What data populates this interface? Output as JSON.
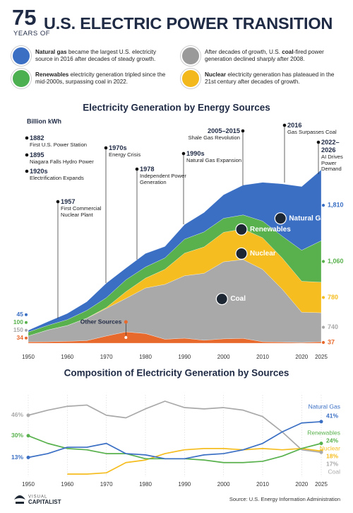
{
  "header": {
    "number": "75",
    "subtitle": "YEARS OF",
    "title": "U.S. ELECTRIC POWER TRANSITION"
  },
  "notes": [
    {
      "color": "#3a6fc4",
      "parts": [
        {
          "text": "Natural gas",
          "bold": true
        },
        {
          "text": " became the largest U.S. electricity source in 2016 after decades of steady growth.",
          "bold": false
        }
      ]
    },
    {
      "color": "#9a9a9a",
      "parts": [
        {
          "text": "After decades of growth, U.S. ",
          "bold": false
        },
        {
          "text": "coal",
          "bold": true
        },
        {
          "text": "-fired power generation declined sharply after 2008.",
          "bold": false
        }
      ]
    },
    {
      "color": "#4caf50",
      "parts": [
        {
          "text": "Renewables",
          "bold": true
        },
        {
          "text": " electricity generation tripled since the mid-2000s, surpassing coal in 2022.",
          "bold": false
        }
      ]
    },
    {
      "color": "#f2b81c",
      "parts": [
        {
          "text": "Nuclear",
          "bold": true
        },
        {
          "text": " electricity generation has plateaued in the 21st century after decades of growth.",
          "bold": false
        }
      ]
    }
  ],
  "chart_data": [
    {
      "type": "area",
      "title": "Electricity Generation by Energy Sources",
      "y_label": "Billion kWh",
      "x": [
        1950,
        1955,
        1960,
        1965,
        1970,
        1975,
        1980,
        1985,
        1990,
        1995,
        2000,
        2005,
        2010,
        2015,
        2020,
        2025
      ],
      "xlim": [
        1950,
        2025
      ],
      "xticks": [
        1950,
        1960,
        1970,
        1980,
        1990,
        2000,
        2010,
        2020,
        2025
      ],
      "series": [
        {
          "name": "Other Sources",
          "color": "#e8692c",
          "values": [
            34,
            37,
            48,
            65,
            184,
            289,
            246,
            100,
            127,
            75,
            111,
            122,
            37,
            28,
            17,
            37
          ],
          "value_labels": [
            "34",
            null,
            null,
            null,
            null,
            null,
            null,
            null,
            null,
            null,
            null,
            null,
            null,
            null,
            null,
            "37"
          ]
        },
        {
          "name": "Coal",
          "color": "#a9a9a9",
          "values": [
            150,
            301,
            403,
            571,
            704,
            853,
            1162,
            1402,
            1594,
            1709,
            1966,
            2013,
            1847,
            1352,
            774,
            740
          ],
          "value_labels": [
            "150",
            null,
            null,
            null,
            null,
            null,
            null,
            null,
            null,
            null,
            null,
            null,
            null,
            null,
            null,
            "740"
          ]
        },
        {
          "name": "Nuclear",
          "color": "#f5bd1f",
          "values": [
            0,
            0,
            1,
            4,
            22,
            173,
            251,
            384,
            577,
            673,
            754,
            782,
            807,
            797,
            790,
            780
          ],
          "value_labels": [
            null,
            null,
            null,
            null,
            null,
            null,
            null,
            null,
            null,
            null,
            null,
            null,
            null,
            null,
            null,
            "780"
          ]
        },
        {
          "name": "Renewables",
          "color": "#58b14c",
          "values": [
            100,
            116,
            149,
            197,
            251,
            303,
            285,
            292,
            357,
            384,
            357,
            358,
            427,
            557,
            792,
            1060
          ],
          "value_labels": [
            "100",
            null,
            null,
            null,
            null,
            null,
            null,
            null,
            null,
            null,
            null,
            null,
            null,
            null,
            null,
            "1,060"
          ]
        },
        {
          "name": "Natural Gas",
          "color": "#3a6fc4",
          "values": [
            45,
            95,
            158,
            222,
            373,
            300,
            346,
            292,
            373,
            496,
            601,
            761,
            988,
            1335,
            1626,
            1810
          ],
          "value_labels": [
            "45",
            null,
            null,
            null,
            null,
            null,
            null,
            null,
            null,
            null,
            null,
            null,
            null,
            null,
            null,
            "1,810"
          ]
        }
      ],
      "annotations": [
        {
          "year": "1882",
          "text": "First U.S. Power Station"
        },
        {
          "year": "1895",
          "text": "Niagara Falls Hydro Power"
        },
        {
          "year": "1920s",
          "text": "Electrification Expands"
        },
        {
          "year": "1957",
          "text": "First Commercial Nuclear Plant"
        },
        {
          "year": "1970s",
          "text": "Energy Crisis"
        },
        {
          "year": "1978",
          "text": "Independent Power Generation"
        },
        {
          "year": "1990s",
          "text": "Natural Gas Expansion"
        },
        {
          "year": "2005–2015",
          "text": "Shale Gas Revolution"
        },
        {
          "year": "2016",
          "text": "Gas Surpasses Coal"
        },
        {
          "year": "2022–2026",
          "text": "AI Drives Power Demand"
        }
      ]
    },
    {
      "type": "line",
      "title": "Composition of Electricity Generation by Sources",
      "grid": true,
      "x": [
        1950,
        1955,
        1960,
        1965,
        1970,
        1975,
        1980,
        1985,
        1990,
        1995,
        2000,
        2005,
        2010,
        2015,
        2020,
        2025
      ],
      "xlim": [
        1950,
        2025
      ],
      "xticks": [
        1950,
        1960,
        1970,
        1980,
        1990,
        2000,
        2010,
        2020,
        2025
      ],
      "series": [
        {
          "name": "Natural Gas",
          "color": "#3a6fc4",
          "values": [
            13,
            16,
            21,
            21,
            24,
            16,
            15,
            12,
            12,
            15,
            16,
            19,
            24,
            33,
            40,
            41
          ],
          "value_labels": [
            "13%",
            null,
            null,
            null,
            null,
            null,
            null,
            null,
            null,
            null,
            null,
            null,
            null,
            null,
            null,
            "41%"
          ]
        },
        {
          "name": "Renewables",
          "color": "#58b14c",
          "values": [
            30,
            24,
            20,
            19,
            16,
            16,
            12,
            12,
            12,
            11,
            9,
            9,
            10,
            14,
            20,
            24
          ],
          "value_labels": [
            "30%",
            null,
            null,
            null,
            null,
            null,
            null,
            null,
            null,
            null,
            null,
            null,
            null,
            null,
            null,
            "24%"
          ]
        },
        {
          "name": "Nuclear",
          "color": "#f5bd1f",
          "values": [
            null,
            null,
            0,
            0,
            1,
            9,
            11,
            16,
            19,
            20,
            20,
            19,
            20,
            19,
            20,
            18
          ],
          "value_labels": [
            null,
            null,
            null,
            null,
            null,
            null,
            null,
            null,
            null,
            null,
            null,
            null,
            null,
            null,
            null,
            "18%"
          ]
        },
        {
          "name": "Coal",
          "color": "#a9a9a9",
          "values": [
            46,
            50,
            53,
            54,
            46,
            44,
            51,
            57,
            52,
            51,
            52,
            50,
            45,
            33,
            19,
            17
          ],
          "value_labels": [
            "46%",
            null,
            null,
            null,
            null,
            null,
            null,
            null,
            null,
            null,
            null,
            null,
            null,
            null,
            null,
            "17%"
          ]
        }
      ]
    }
  ],
  "footer": {
    "logo_top": "VISUAL",
    "logo_bottom": "CAPITALIST",
    "source": "Source: U.S. Energy Information Administration"
  }
}
